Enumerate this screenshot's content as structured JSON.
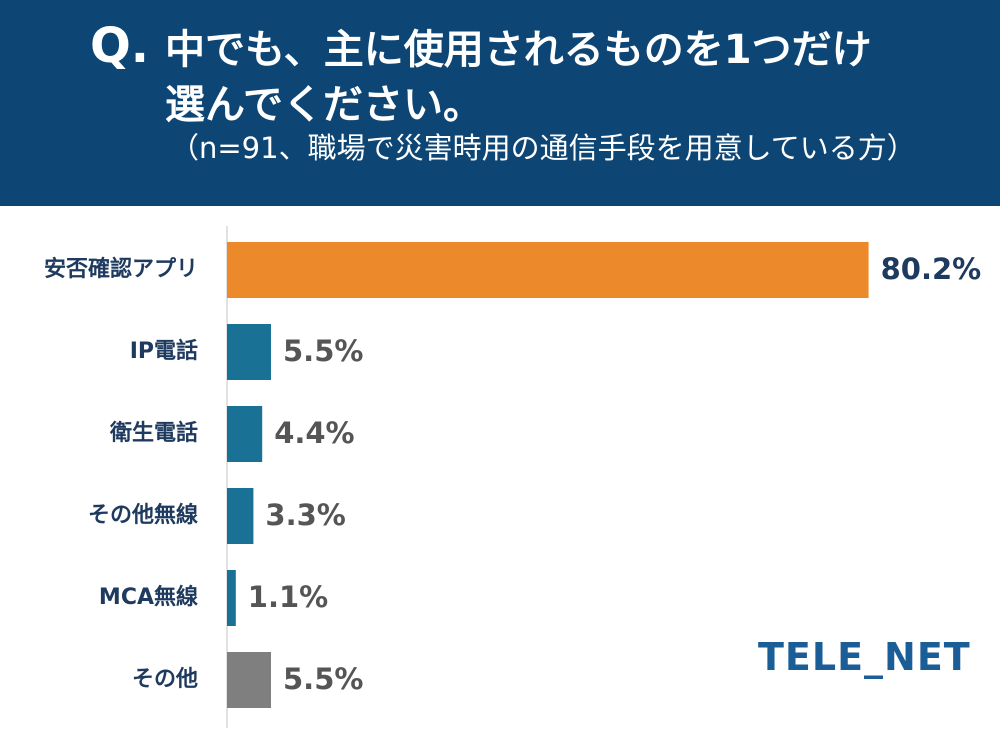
{
  "header": {
    "q_mark": "Q.",
    "question_line1": "中でも、主に使用されるものを1つだけ",
    "question_line2": "選んでください。",
    "note": "（n=91、職場で災害時用の通信手段を用意している方）"
  },
  "logo": {
    "text": "TELE_NET"
  },
  "colors": {
    "header_bg": "#0d4674",
    "highlight_bar": "#ec8a2b",
    "default_bar": "#1a7196",
    "other_bar": "#7f7f7f",
    "highlight_value_text": "#1f3a5f",
    "default_value_text": "#555555"
  },
  "chart_data": {
    "type": "bar",
    "orientation": "horizontal",
    "title": "中でも、主に使用されるものを1つだけ選んでください。",
    "subtitle": "（n=91、職場で災害時用の通信手段を用意している方）",
    "categories": [
      "安否確認アプリ",
      "IP電話",
      "衛生電話",
      "その他無線",
      "MCA無線",
      "その他"
    ],
    "values": [
      80.2,
      5.5,
      4.4,
      3.3,
      1.1,
      5.5
    ],
    "value_labels": [
      "80.2%",
      "5.5%",
      "4.4%",
      "3.3%",
      "1.1%",
      "5.5%"
    ],
    "unit": "%",
    "xlim": [
      0,
      100
    ],
    "xlabel": "",
    "ylabel": "",
    "grid": false,
    "legend": "none"
  }
}
